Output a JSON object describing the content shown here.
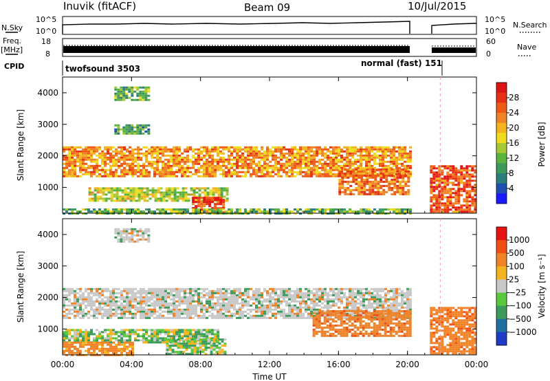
{
  "header": {
    "station": "Inuvik (fitACF)",
    "beam": "Beam 09",
    "date": "10/Jul/2015"
  },
  "panels": {
    "nsky_label": "N.Sky",
    "nsky_tick_hi": "10^5",
    "nsky_tick_lo": "10^0",
    "nsearch_label": "N.Search",
    "nsearch_tick_hi": "10^5",
    "nsearch_tick_lo": "10^0",
    "freq_label_1": "Freq.",
    "freq_label_2": "[MHz]",
    "freq_tick_hi": "18",
    "freq_tick_lo": "8",
    "nave_label": "Nave",
    "nave_tick_hi": "60",
    "nave_tick_lo": "0",
    "cpid_label": "CPID",
    "cpid_1": "twofsound 3503",
    "cpid_2": "normal (fast) 151"
  },
  "chart_data": [
    {
      "type": "heatmap",
      "title": "",
      "ylabel": "Slant Range [km]",
      "xlabel": "",
      "x_ticks": [
        "00:00",
        "04:00",
        "08:00",
        "12:00",
        "16:00",
        "20:00",
        "00:00"
      ],
      "xlim_hours": [
        0,
        24
      ],
      "y_ticks": [
        1000,
        2000,
        3000,
        4000
      ],
      "ylim": [
        180,
        4500
      ],
      "colorbar": {
        "label": "Power [dB]",
        "ticks": [
          4,
          8,
          12,
          16,
          20,
          24,
          28
        ],
        "range": [
          0,
          32
        ],
        "colors": [
          "#1a1aff",
          "#1f4fb0",
          "#2e7d7d",
          "#3c9a5a",
          "#5ab33c",
          "#a6c832",
          "#f0dc1e",
          "#f5b41e",
          "#f08228",
          "#f05a14",
          "#e63214",
          "#dc1414"
        ]
      },
      "data_gap_hours": [
        20.2,
        21.3
      ],
      "echo_bands": [
        {
          "start_h": 0.0,
          "end_h": 20.1,
          "range_lo_km": 1350,
          "range_hi_km": 2300,
          "power_db": 22
        },
        {
          "start_h": 1.5,
          "end_h": 9.5,
          "range_lo_km": 600,
          "range_hi_km": 1000,
          "power_db": 16
        },
        {
          "start_h": 7.5,
          "end_h": 9.3,
          "range_lo_km": 200,
          "range_hi_km": 700,
          "power_db": 28
        },
        {
          "start_h": 16.0,
          "end_h": 20.1,
          "range_lo_km": 800,
          "range_hi_km": 1600,
          "power_db": 24
        },
        {
          "start_h": 21.3,
          "end_h": 24.0,
          "range_lo_km": 200,
          "range_hi_km": 1700,
          "power_db": 26
        },
        {
          "start_h": 0.0,
          "end_h": 20.1,
          "range_lo_km": 180,
          "range_hi_km": 330,
          "power_db": 12
        },
        {
          "start_h": 3.0,
          "end_h": 5.0,
          "range_lo_km": 3800,
          "range_hi_km": 4200,
          "power_db": 12
        },
        {
          "start_h": 3.0,
          "end_h": 5.0,
          "range_lo_km": 2700,
          "range_hi_km": 3000,
          "power_db": 10
        }
      ]
    },
    {
      "type": "heatmap",
      "title": "",
      "ylabel": "Slant Range [km]",
      "xlabel": "Time UT",
      "x_ticks": [
        "00:00",
        "04:00",
        "08:00",
        "12:00",
        "16:00",
        "20:00",
        "00:00"
      ],
      "xlim_hours": [
        0,
        24
      ],
      "y_ticks": [
        1000,
        2000,
        3000,
        4000
      ],
      "ylim": [
        180,
        4500
      ],
      "colorbar": {
        "label": "Velocity [m s⁻¹]",
        "ticks": [
          "1000",
          "500",
          "100",
          "25",
          "−25",
          "−100",
          "−500",
          "−1000"
        ],
        "colors": [
          "#1e3cc8",
          "#1f6fa0",
          "#3c9a5a",
          "#5ac83c",
          "#c8c8c8",
          "#f5b41e",
          "#f08228",
          "#f05014",
          "#e61414"
        ]
      },
      "data_gap_hours": [
        20.2,
        21.3
      ],
      "echo_bands": [
        {
          "start_h": 0.0,
          "end_h": 20.1,
          "range_lo_km": 1350,
          "range_hi_km": 2300,
          "velocity": 0
        },
        {
          "start_h": 0.0,
          "end_h": 9.0,
          "range_lo_km": 600,
          "range_hi_km": 1000,
          "velocity": 60
        },
        {
          "start_h": 0.0,
          "end_h": 4.0,
          "range_lo_km": 200,
          "range_hi_km": 600,
          "velocity": -200
        },
        {
          "start_h": 6.0,
          "end_h": 9.5,
          "range_lo_km": 200,
          "range_hi_km": 700,
          "velocity": 60
        },
        {
          "start_h": 14.5,
          "end_h": 20.1,
          "range_lo_km": 800,
          "range_hi_km": 1600,
          "velocity": -400
        },
        {
          "start_h": 21.3,
          "end_h": 24.0,
          "range_lo_km": 200,
          "range_hi_km": 1700,
          "velocity": -400
        },
        {
          "start_h": 3.0,
          "end_h": 5.0,
          "range_lo_km": 3800,
          "range_hi_km": 4200,
          "velocity": 0
        }
      ]
    }
  ]
}
